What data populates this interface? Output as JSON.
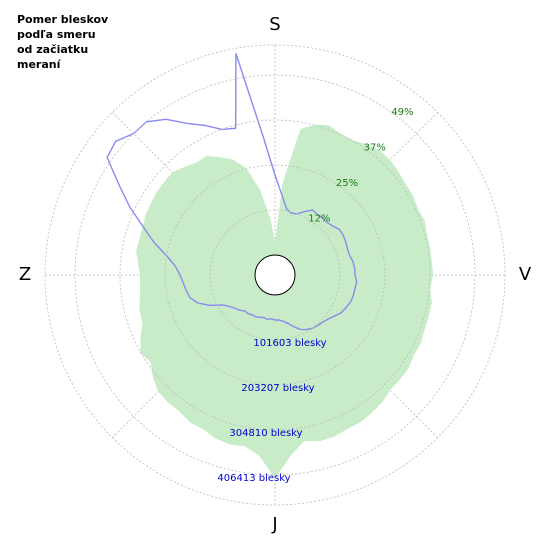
{
  "chart_data": {
    "type": "polar",
    "title": [
      "Pomer bleskov",
      "podľa smeru",
      "od začiatku",
      "meraní"
    ],
    "direction_labels": [
      "S",
      "V",
      "J",
      "Z"
    ],
    "x": [
      0,
      5,
      10,
      15,
      20,
      25,
      30,
      35,
      40,
      45,
      50,
      55,
      60,
      65,
      70,
      75,
      80,
      85,
      90,
      95,
      100,
      105,
      110,
      115,
      120,
      125,
      130,
      135,
      140,
      145,
      150,
      155,
      160,
      165,
      170,
      175,
      180,
      185,
      190,
      195,
      200,
      205,
      210,
      215,
      220,
      225,
      230,
      235,
      240,
      245,
      250,
      255,
      260,
      265,
      270,
      275,
      280,
      285,
      290,
      295,
      300,
      305,
      310,
      315,
      320,
      325,
      330,
      335,
      340,
      345,
      350,
      355
    ],
    "series": [
      {
        "color": "#c8ecc8",
        "axis": "r",
        "style": "area",
        "values": [
          3,
          20,
          35,
          37,
          38,
          37,
          37,
          38,
          39,
          39,
          38.5,
          38,
          38,
          37.5,
          38,
          37.5,
          37.5,
          37.5,
          37.7,
          37,
          38,
          38,
          38,
          38.5,
          38.3,
          39,
          39,
          39,
          40,
          40.5,
          41,
          41,
          41.5,
          41.5,
          40.5,
          44,
          50,
          44,
          42,
          42.4,
          42,
          41,
          41,
          40,
          40,
          39.6,
          38,
          36,
          37,
          35,
          33,
          32.8,
          32,
          31.5,
          31.4,
          32,
          33,
          32.8,
          33,
          33.5,
          33.6,
          34,
          34,
          34.2,
          33,
          32,
          32,
          30,
          28,
          24.6,
          18,
          10
        ]
      },
      {
        "color": "#8a8aee",
        "axis": "r2",
        "style": "line",
        "values": [
          180600,
          135500,
          106100,
          99400,
          101600,
          112900,
          124200,
          121900,
          121900,
          121900,
          126400,
          133200,
          133200,
          131000,
          128700,
          128700,
          133200,
          135500,
          135500,
          140000,
          137700,
          137700,
          135500,
          131000,
          126400,
          117400,
          110600,
          106100,
          103900,
          101600,
          97100,
          90300,
          79000,
          67700,
          61000,
          56500,
          56500,
          54200,
          56500,
          54200,
          56500,
          58700,
          58700,
          61000,
          61000,
          67700,
          72300,
          79000,
          90300,
          117400,
          140000,
          153500,
          158100,
          162600,
          169400,
          180600,
          203200,
          237100,
          271000,
          316100,
          361300,
          417700,
          424500,
          406400,
          406400,
          383900,
          350000,
          327400,
          304800,
          298000,
          462900,
          271000
        ]
      }
    ],
    "rlim": [
      0,
      57.4
    ],
    "rticks": [
      {
        "value": 12.3,
        "label": "12%"
      },
      {
        "value": 24.6,
        "label": "25%"
      },
      {
        "value": 36.9,
        "label": "37%"
      },
      {
        "value": 49.2,
        "label": "49%"
      }
    ],
    "r2lim": [
      0,
      474148
    ],
    "r2ticks": [
      {
        "value": 101603,
        "label": "101603 blesky"
      },
      {
        "value": 203207,
        "label": "203207 blesky"
      },
      {
        "value": 304810,
        "label": "304810 blesky"
      },
      {
        "value": 406413,
        "label": "406413 blesky"
      }
    ],
    "grid": true
  }
}
